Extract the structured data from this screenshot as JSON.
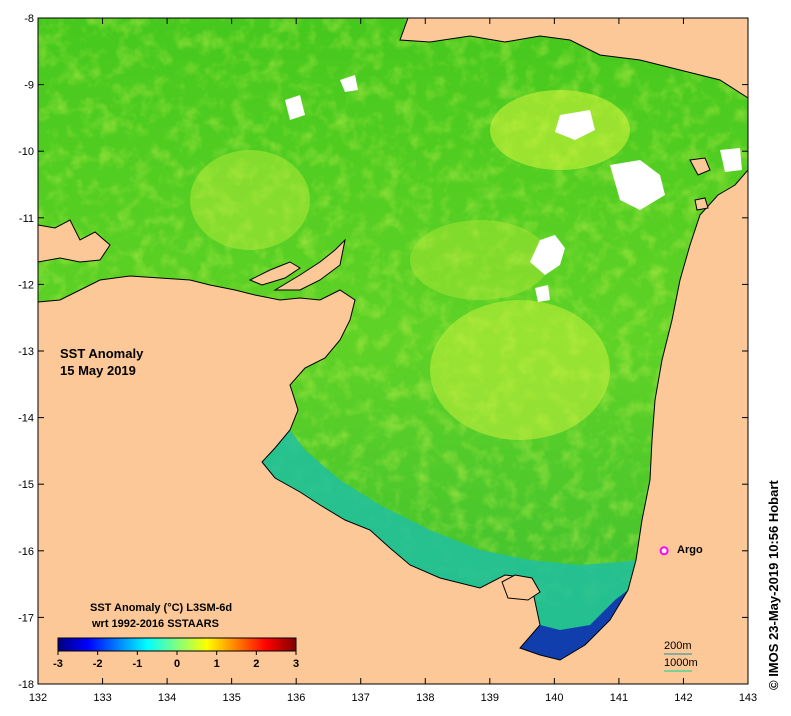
{
  "map": {
    "title_line1": "SST Anomaly",
    "title_line2": "15 May 2019",
    "x_ticks": [
      "132",
      "133",
      "134",
      "135",
      "136",
      "137",
      "138",
      "139",
      "140",
      "141",
      "142",
      "143"
    ],
    "y_ticks": [
      "-8",
      "-9",
      "-10",
      "-11",
      "-12",
      "-13",
      "-14",
      "-15",
      "-16",
      "-17",
      "-18"
    ],
    "lon_range": [
      132,
      143
    ],
    "lat_range": [
      -18,
      -8
    ],
    "land_color": "#fcc898",
    "coast_color": "#000000"
  },
  "marker": {
    "label": "Argo",
    "lon": 141.7,
    "lat": -16.0,
    "color": "#ff00ff"
  },
  "colorbar": {
    "title_line1": "SST Anomaly (°C) L3SM-6d",
    "title_line2": "wrt 1992-2016 SSTAARS",
    "ticks": [
      "-3",
      "-2",
      "-1",
      "0",
      "1",
      "2",
      "3"
    ],
    "range": [
      -3,
      3
    ],
    "colors": [
      "#00007f",
      "#0000ff",
      "#007fff",
      "#00ffff",
      "#7fff7f",
      "#ffff00",
      "#ff7f00",
      "#ff0000",
      "#7f0000"
    ]
  },
  "isobath_legend": {
    "label_200": "200m",
    "label_1000": "1000m"
  },
  "credit": "© IMOS 23-May-2019 10:56 Hobart"
}
